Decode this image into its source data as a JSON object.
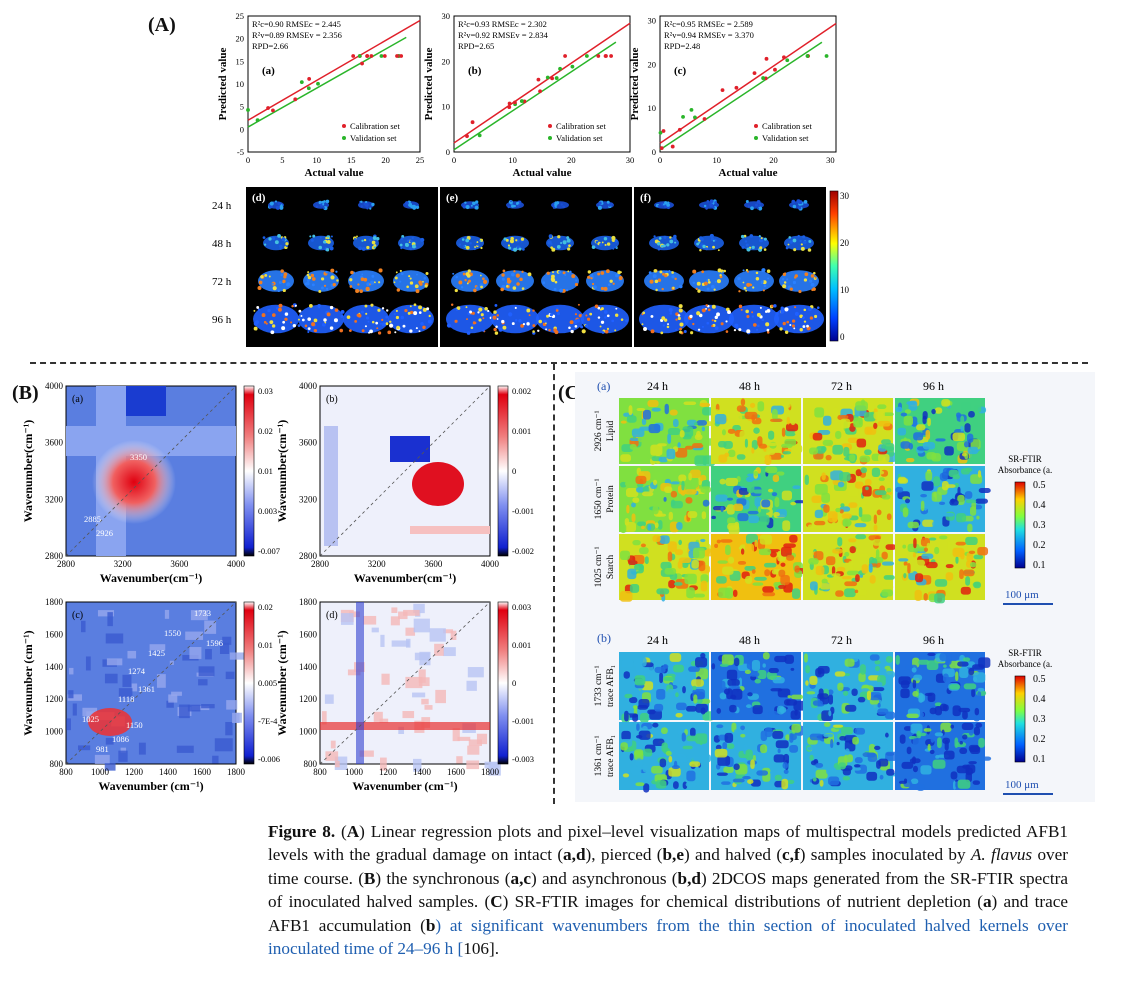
{
  "panel_labels": {
    "A": "(A)",
    "B": "(B)",
    "C": "(C)"
  },
  "regression": {
    "ylabel": "Predicted value",
    "xlabel": "Actual value",
    "legend": [
      "Calibration set",
      "Validation set"
    ],
    "plots": [
      {
        "id": "a",
        "tag": "(a)",
        "stats": [
          "R²c=0.90  RMSEc = 2.445",
          "R²v=0.89  RMSEv = 2.356",
          "RPD=2.66"
        ],
        "xticks": [
          "0",
          "5",
          "10",
          "15",
          "20",
          "25"
        ],
        "yticks": [
          "-5",
          "0",
          "5",
          "10",
          "15",
          "20",
          "25"
        ]
      },
      {
        "id": "b",
        "tag": "(b)",
        "stats": [
          "R²c=0.93  RMSEc = 2.302",
          "R²v=0.92  RMSEv = 2.834",
          "RPD=2.65"
        ],
        "xticks": [
          "0",
          "10",
          "20",
          "30"
        ],
        "yticks": [
          "0",
          "10",
          "20",
          "30"
        ]
      },
      {
        "id": "c",
        "tag": "(c)",
        "stats": [
          "R²c=0.95  RMSEc = 2.589",
          "R²v=0.94  RMSEv = 3.370",
          "RPD=2.48"
        ],
        "xticks": [
          "0",
          "10",
          "20",
          "30"
        ],
        "yticks": [
          "0",
          "10",
          "20",
          "30"
        ]
      }
    ]
  },
  "maps": {
    "rows": [
      "24 h",
      "48 h",
      "72 h",
      "96 h"
    ],
    "tags": [
      "(d)",
      "(e)",
      "(f)"
    ],
    "colorbar": [
      "30",
      "20",
      "10",
      "0"
    ]
  },
  "dcos": {
    "xlabel": "Wavenumber(cm⁻¹)",
    "ylabel": "Wavenumber(cm⁻¹)",
    "xlabel2": "Wavenumber (cm⁻¹)",
    "ylabel2": "Wavenumber (cm⁻¹)",
    "plots": [
      {
        "tag": "(a)",
        "ticks": [
          "2800",
          "3200",
          "3600",
          "4000"
        ],
        "cbar": [
          "0.03",
          "0.02",
          "0.01",
          "0.003",
          "-0.007"
        ],
        "annot": [
          "3350",
          "2885",
          "2926"
        ]
      },
      {
        "tag": "(b)",
        "ticks": [
          "2800",
          "3200",
          "3600",
          "4000"
        ],
        "cbar": [
          "0.002",
          "0.001",
          "0",
          "-0.001",
          "-0.002"
        ]
      },
      {
        "tag": "(c)",
        "ticks": [
          "800",
          "1000",
          "1200",
          "1400",
          "1600",
          "1800"
        ],
        "cbar": [
          "0.02",
          "0.01",
          "0.005",
          "-7E-4",
          "-0.006"
        ],
        "annot": [
          "1733",
          "1550",
          "1596",
          "1425",
          "1274",
          "1361",
          "1118",
          "1025",
          "1150",
          "1086",
          "981"
        ]
      },
      {
        "tag": "(d)",
        "ticks": [
          "800",
          "1000",
          "1200",
          "1400",
          "1600",
          "1800"
        ],
        "cbar": [
          "0.003",
          "0.001",
          "0",
          "-0.001",
          "-0.003"
        ]
      }
    ]
  },
  "srftir": {
    "a_tag": "(a)",
    "b_tag": "(b)",
    "times": [
      "24 h",
      "48 h",
      "72 h",
      "96 h"
    ],
    "rows_a": [
      [
        "2926 cm⁻¹",
        "Lipid"
      ],
      [
        "1650 cm⁻¹",
        "Protein"
      ],
      [
        "1025 cm⁻¹",
        "Starch"
      ]
    ],
    "rows_b": [
      [
        "1733 cm⁻¹",
        "trace AFB₁"
      ],
      [
        "1361 cm⁻¹",
        "trace AFB₁"
      ]
    ],
    "cbar_title_a": [
      "SR-FTIR",
      "Absorbance (a."
    ],
    "cbar_title_b": [
      "SR-FTIR",
      "Absorbance (a."
    ],
    "cbar_ticks": [
      "0.5",
      "0.4",
      "0.3",
      "0.2",
      "0.1"
    ],
    "scale": "100 μm"
  },
  "caption": {
    "label": "Figure 8.",
    "parts": [
      " (",
      "A",
      ") Linear regression plots and pixel–level visualization maps of multispectral models predicted AFB1 levels with the gradual damage on intact (",
      "a,d",
      "), pierced (",
      "b,e",
      ") and halved (",
      "c,f",
      ") samples inoculated by ",
      "A. flavus",
      " over time course. (",
      "B",
      ") the synchronous (",
      "a,c",
      ") and asynchronous (",
      "b,d",
      ") 2DCOS maps generated from the SR-FTIR spectra of inoculated halved samples. (",
      "C",
      ") SR-FTIR images for chemical distributions of nutrient depletion (",
      "a",
      ") and trace AFB1 accumulation (",
      "b",
      ") at significant wavenumbers from the thin section of inoculated halved kernels over inoculated time of 24–96 h [",
      "106",
      "]."
    ]
  }
}
